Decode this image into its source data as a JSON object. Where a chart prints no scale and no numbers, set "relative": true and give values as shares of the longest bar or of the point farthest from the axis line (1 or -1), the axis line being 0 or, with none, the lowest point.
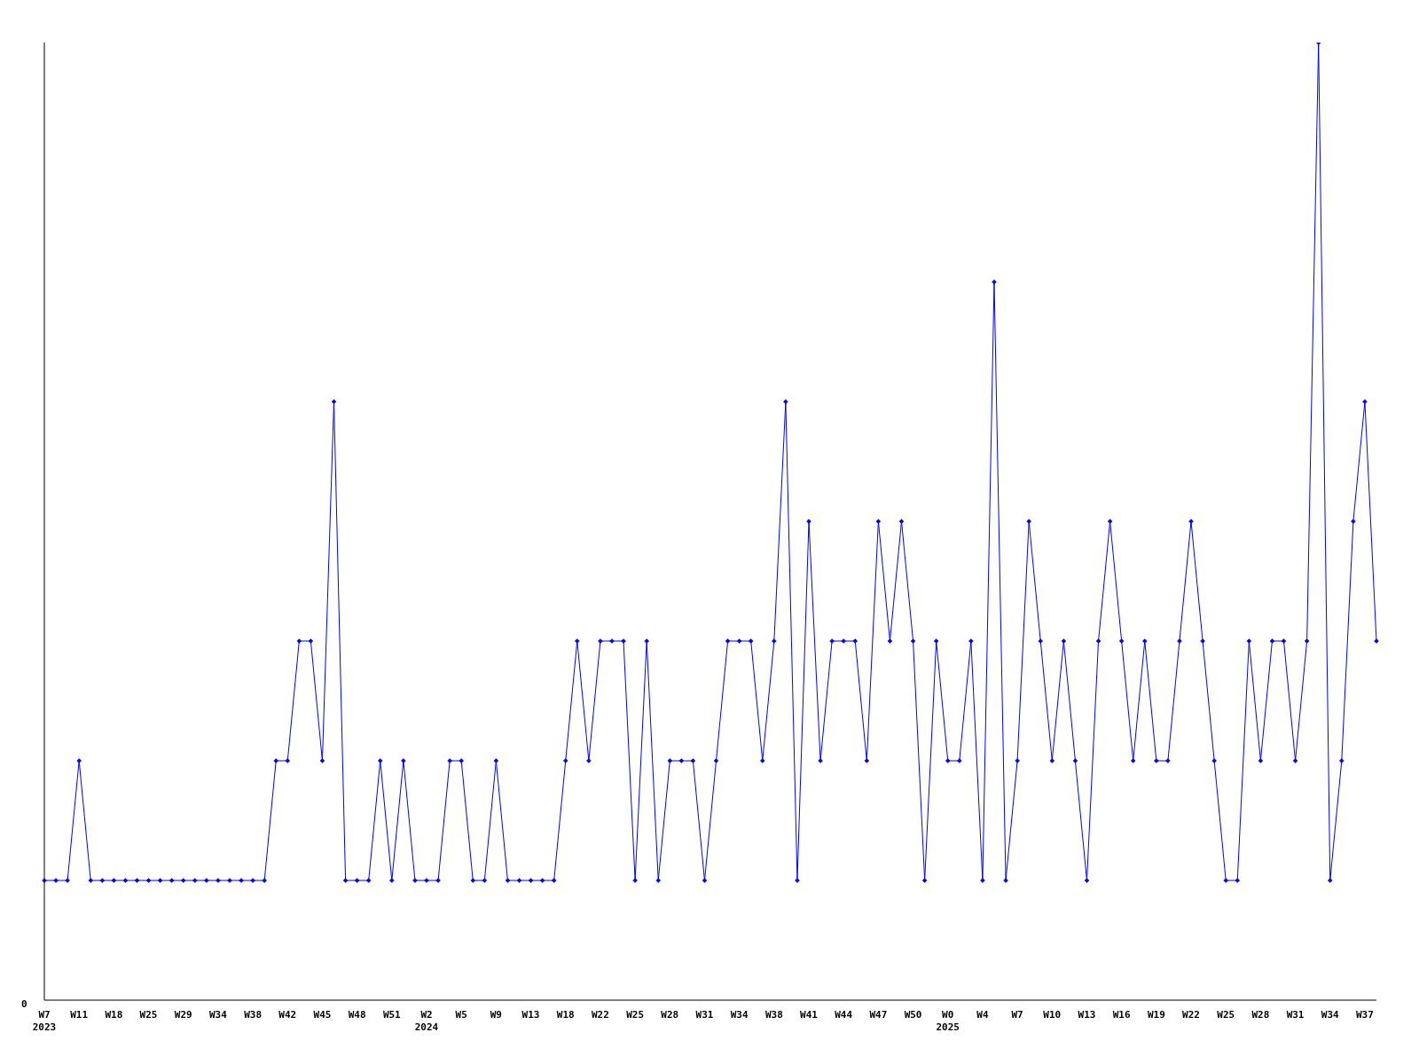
{
  "chart_data": {
    "type": "line",
    "relative": true,
    "marker": "diamond",
    "line_style": "solid",
    "categories": [
      "W7\n2023",
      null,
      null,
      "W11",
      null,
      null,
      "W18",
      null,
      null,
      "W25",
      null,
      null,
      "W29",
      null,
      null,
      "W34",
      null,
      null,
      "W38",
      null,
      null,
      "W42",
      null,
      null,
      "W45",
      null,
      null,
      "W48",
      null,
      null,
      "W51",
      null,
      null,
      "W2\n2024",
      null,
      null,
      "W5",
      null,
      null,
      "W9",
      null,
      null,
      "W13",
      null,
      null,
      "W18",
      null,
      null,
      "W22",
      null,
      null,
      "W25",
      null,
      null,
      "W28",
      null,
      null,
      "W31",
      null,
      null,
      "W34",
      null,
      null,
      "W38",
      null,
      null,
      "W41",
      null,
      null,
      "W44",
      null,
      null,
      "W47",
      null,
      null,
      "W50",
      null,
      null,
      "W0\n2025",
      null,
      null,
      "W4",
      null,
      null,
      "W7",
      null,
      null,
      "W10",
      null,
      null,
      "W13",
      null,
      null,
      "W16",
      null,
      null,
      "W19",
      null,
      null,
      "W22",
      null,
      null,
      "W25",
      null,
      null,
      "W28",
      null,
      null,
      "W31",
      null,
      null,
      "W34",
      null,
      null,
      "W37",
      null
    ],
    "series": [
      {
        "color": "#0000ff",
        "values": [
          0.125,
          0.125,
          0.125,
          0.25,
          0.125,
          0.125,
          0.125,
          0.125,
          0.125,
          0.125,
          0.125,
          0.125,
          0.125,
          0.125,
          0.125,
          0.125,
          0.125,
          0.125,
          0.125,
          0.125,
          0.25,
          0.25,
          0.375,
          0.375,
          0.25,
          0.625,
          0.125,
          0.125,
          0.125,
          0.25,
          0.125,
          0.25,
          0.125,
          0.125,
          0.125,
          0.25,
          0.25,
          0.125,
          0.125,
          0.25,
          0.125,
          0.125,
          0.125,
          0.125,
          0.125,
          0.25,
          0.375,
          0.25,
          0.375,
          0.375,
          0.375,
          0.125,
          0.375,
          0.125,
          0.25,
          0.25,
          0.25,
          0.125,
          0.25,
          0.375,
          0.375,
          0.375,
          0.25,
          0.375,
          0.625,
          0.125,
          0.5,
          0.25,
          0.375,
          0.375,
          0.375,
          0.25,
          0.5,
          0.375,
          0.5,
          0.375,
          0.125,
          0.375,
          0.25,
          0.25,
          0.375,
          0.125,
          0.75,
          0.125,
          0.25,
          0.5,
          0.375,
          0.25,
          0.375,
          0.25,
          0.125,
          0.375,
          0.5,
          0.375,
          0.25,
          0.375,
          0.25,
          0.25,
          0.375,
          0.5,
          0.375,
          0.25,
          0.125,
          0.125,
          0.375,
          0.25,
          0.375,
          0.375,
          0.25,
          0.375,
          1,
          0.125,
          0.25,
          0.5,
          0.625,
          0.375
        ]
      }
    ],
    "annotations": [
      "0"
    ]
  }
}
